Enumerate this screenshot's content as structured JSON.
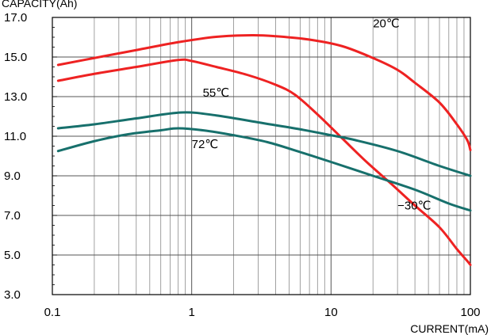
{
  "chart_data": {
    "type": "line",
    "title": "",
    "xlabel": "CURRENT(mA)",
    "ylabel": "CAPACITY(Ah)",
    "xscale": "log",
    "xlim": [
      0.1,
      100
    ],
    "ylim": [
      3.0,
      17.0
    ],
    "x_ticks": [
      0.1,
      1,
      10,
      100
    ],
    "x_tick_labels": [
      "0.1",
      "1",
      "10",
      "100"
    ],
    "y_ticks": [
      3,
      5,
      7,
      9,
      11,
      13,
      15,
      17
    ],
    "y_tick_labels": [
      "3.0",
      "5.0",
      "7.0",
      "9.0",
      "11.0",
      "13.0",
      "15.0",
      "17.0"
    ],
    "grid": true,
    "series": [
      {
        "color": "#ee2222",
        "points": [
          [
            0.11,
            14.6
          ],
          [
            0.2,
            14.95
          ],
          [
            0.4,
            15.35
          ],
          [
            0.8,
            15.75
          ],
          [
            1.5,
            16.02
          ],
          [
            2.7,
            16.1
          ],
          [
            4,
            16.05
          ],
          [
            7,
            15.88
          ],
          [
            12,
            15.55
          ],
          [
            20,
            14.95
          ],
          [
            30,
            14.35
          ],
          [
            40,
            13.7
          ],
          [
            60,
            12.7
          ],
          [
            80,
            11.6
          ],
          [
            95,
            10.8
          ],
          [
            100,
            10.3
          ]
        ]
      },
      {
        "color": "#ee2222",
        "points": [
          [
            0.11,
            13.8
          ],
          [
            0.2,
            14.15
          ],
          [
            0.4,
            14.5
          ],
          [
            0.8,
            14.85
          ],
          [
            1,
            14.8
          ],
          [
            1.5,
            14.5
          ],
          [
            2.5,
            14.1
          ],
          [
            4,
            13.6
          ],
          [
            5.5,
            13.1
          ],
          [
            8,
            12.1
          ],
          [
            12,
            10.9
          ],
          [
            18,
            9.7
          ],
          [
            27,
            8.6
          ],
          [
            40,
            7.5
          ],
          [
            60,
            6.4
          ],
          [
            80,
            5.3
          ],
          [
            95,
            4.7
          ],
          [
            100,
            4.5
          ]
        ]
      },
      {
        "color": "#17706c",
        "points": [
          [
            0.11,
            11.4
          ],
          [
            0.2,
            11.6
          ],
          [
            0.4,
            11.9
          ],
          [
            0.85,
            12.2
          ],
          [
            1.5,
            12.05
          ],
          [
            3,
            11.7
          ],
          [
            6,
            11.35
          ],
          [
            10,
            11.05
          ],
          [
            15,
            10.8
          ],
          [
            30,
            10.25
          ],
          [
            60,
            9.5
          ],
          [
            100,
            9.0
          ]
        ]
      },
      {
        "color": "#17706c",
        "points": [
          [
            0.11,
            10.25
          ],
          [
            0.2,
            10.75
          ],
          [
            0.35,
            11.1
          ],
          [
            0.6,
            11.3
          ],
          [
            0.8,
            11.4
          ],
          [
            1.2,
            11.3
          ],
          [
            2,
            11.05
          ],
          [
            3.5,
            10.7
          ],
          [
            6,
            10.2
          ],
          [
            10,
            9.7
          ],
          [
            20,
            9.0
          ],
          [
            40,
            8.3
          ],
          [
            70,
            7.6
          ],
          [
            100,
            7.25
          ]
        ]
      }
    ],
    "annotations": [
      {
        "text": "20℃",
        "x": 20,
        "y": 16.5
      },
      {
        "text": "55℃",
        "x": 1.2,
        "y": 13.0
      },
      {
        "text": "72℃",
        "x": 1.0,
        "y": 10.4
      },
      {
        "text": "−30℃",
        "x": 30,
        "y": 7.3
      }
    ]
  }
}
